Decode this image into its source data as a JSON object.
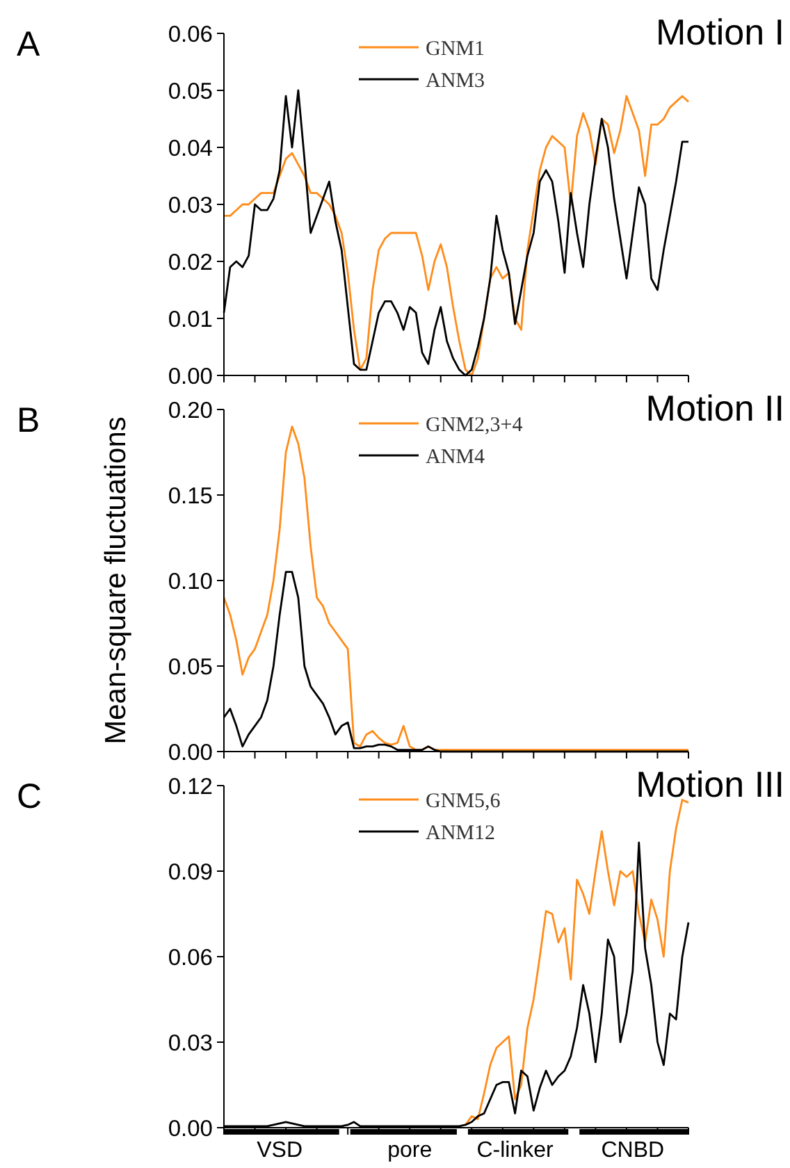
{
  "chart_data": [
    {
      "type": "line",
      "title": "Motion I",
      "annotations": [
        "A"
      ],
      "categories": [
        null,
        null,
        null,
        null,
        null,
        null,
        null,
        null,
        null,
        null,
        null,
        null,
        null,
        null,
        null,
        null,
        null,
        null,
        null,
        null,
        null,
        null,
        null,
        null,
        null,
        null,
        null,
        null,
        null,
        null,
        null,
        null,
        null,
        null,
        null,
        null,
        null,
        null,
        null,
        null,
        null,
        null,
        null,
        null,
        null,
        null,
        null,
        null,
        null,
        null,
        null,
        null,
        null,
        null,
        null,
        null,
        null,
        null,
        null,
        null,
        null,
        null,
        null,
        null,
        null,
        null,
        null,
        null,
        null,
        null,
        null,
        null,
        null,
        null,
        null,
        null
      ],
      "series": [
        {
          "name": "GNM1",
          "color": "#ff8c1a",
          "values": [
            0.028,
            0.028,
            0.029,
            0.03,
            0.03,
            0.031,
            0.032,
            0.032,
            0.032,
            0.035,
            0.038,
            0.039,
            0.037,
            0.035,
            0.032,
            0.032,
            0.031,
            0.03,
            0.028,
            0.025,
            0.018,
            0.008,
            0.001,
            0.003,
            0.015,
            0.022,
            0.024,
            0.025,
            0.025,
            0.025,
            0.025,
            0.025,
            0.021,
            0.015,
            0.02,
            0.023,
            0.019,
            0.012,
            0.006,
            0.001,
            0.0,
            0.003,
            0.01,
            0.017,
            0.019,
            0.017,
            0.018,
            0.01,
            0.008,
            0.022,
            0.029,
            0.036,
            0.04,
            0.042,
            0.041,
            0.04,
            0.03,
            0.042,
            0.046,
            0.043,
            0.037,
            0.045,
            0.044,
            0.039,
            0.043,
            0.049,
            0.046,
            0.043,
            0.035,
            0.044,
            0.044,
            0.045,
            0.047,
            0.048,
            0.049,
            0.048
          ]
        },
        {
          "name": "ANM3",
          "color": "#000000",
          "values": [
            0.011,
            0.019,
            0.02,
            0.019,
            0.021,
            0.03,
            0.029,
            0.029,
            0.031,
            0.036,
            0.049,
            0.04,
            0.05,
            0.038,
            0.025,
            0.028,
            0.031,
            0.034,
            0.027,
            0.022,
            0.012,
            0.002,
            0.001,
            0.001,
            0.006,
            0.011,
            0.013,
            0.013,
            0.011,
            0.008,
            0.012,
            0.011,
            0.004,
            0.002,
            0.008,
            0.012,
            0.006,
            0.003,
            0.001,
            0.0,
            0.001,
            0.005,
            0.01,
            0.017,
            0.028,
            0.022,
            0.018,
            0.009,
            0.015,
            0.021,
            0.025,
            0.034,
            0.036,
            0.034,
            0.027,
            0.018,
            0.032,
            0.025,
            0.019,
            0.03,
            0.038,
            0.045,
            0.04,
            0.031,
            0.024,
            0.017,
            0.025,
            0.033,
            0.03,
            0.017,
            0.015,
            0.022,
            0.028,
            0.034,
            0.041,
            0.041
          ]
        }
      ],
      "ylim": [
        0,
        0.06
      ],
      "yticks": [
        {
          "value": 0,
          "label": "0.00"
        },
        {
          "value": 0.01,
          "label": "0.01"
        },
        {
          "value": 0.02,
          "label": "0.02"
        },
        {
          "value": 0.03,
          "label": "0.03"
        },
        {
          "value": 0.04,
          "label": "0.04"
        },
        {
          "value": 0.05,
          "label": "0.05"
        },
        {
          "value": 0.06,
          "label": "0.06"
        }
      ],
      "legend": "top",
      "tick_labels": "y"
    },
    {
      "type": "line",
      "title": "Motion II",
      "annotations": [
        "B"
      ],
      "ylabel": "Mean-square fluctuations",
      "categories": [
        null,
        null,
        null,
        null,
        null,
        null,
        null,
        null,
        null,
        null,
        null,
        null,
        null,
        null,
        null,
        null,
        null,
        null,
        null,
        null,
        null,
        null,
        null,
        null,
        null,
        null,
        null,
        null,
        null,
        null,
        null,
        null,
        null,
        null,
        null,
        null,
        null,
        null,
        null,
        null,
        null,
        null,
        null,
        null,
        null,
        null,
        null,
        null,
        null,
        null,
        null,
        null,
        null,
        null,
        null,
        null,
        null,
        null,
        null,
        null,
        null,
        null,
        null,
        null,
        null,
        null,
        null,
        null,
        null,
        null,
        null,
        null,
        null,
        null,
        null,
        null
      ],
      "series": [
        {
          "name": "GNM2,3+4",
          "color": "#ff8c1a",
          "values": [
            0.09,
            0.08,
            0.065,
            0.045,
            0.055,
            0.06,
            0.07,
            0.08,
            0.1,
            0.13,
            0.175,
            0.19,
            0.18,
            0.16,
            0.12,
            0.09,
            0.085,
            0.075,
            0.07,
            0.065,
            0.06,
            0.005,
            0.003,
            0.01,
            0.012,
            0.008,
            0.005,
            0.004,
            0.005,
            0.015,
            0.003,
            0.001,
            0.001,
            0.003,
            0.001,
            0.001,
            0.001,
            0.001,
            0.001,
            0.001,
            0.001,
            0.001,
            0.001,
            0.001,
            0.001,
            0.001,
            0.001,
            0.001,
            0.001,
            0.001,
            0.001,
            0.001,
            0.001,
            0.001,
            0.001,
            0.001,
            0.001,
            0.001,
            0.001,
            0.001,
            0.001,
            0.001,
            0.001,
            0.001,
            0.001,
            0.001,
            0.001,
            0.001,
            0.001,
            0.001,
            0.001,
            0.001,
            0.001,
            0.001,
            0.001,
            0.001
          ]
        },
        {
          "name": "ANM4",
          "color": "#000000",
          "values": [
            0.02,
            0.025,
            0.015,
            0.003,
            0.01,
            0.015,
            0.02,
            0.03,
            0.05,
            0.08,
            0.105,
            0.105,
            0.09,
            0.05,
            0.038,
            0.033,
            0.028,
            0.02,
            0.01,
            0.015,
            0.017,
            0.002,
            0.002,
            0.003,
            0.003,
            0.004,
            0.004,
            0.003,
            0.001,
            0.001,
            0.001,
            0.001,
            0.001,
            0.003,
            0.001,
            0.0,
            0.0,
            0.0,
            0.0,
            0.0,
            0.0,
            0.0,
            0.0,
            0.0,
            0.0,
            0.0,
            0.0,
            0.0,
            0.0,
            0.0,
            0.0,
            0.0,
            0.0,
            0.0,
            0.0,
            0.0,
            0.0,
            0.0,
            0.0,
            0.0,
            0.0,
            0.0,
            0.0,
            0.0,
            0.0,
            0.0,
            0.0,
            0.0,
            0.0,
            0.0,
            0.0,
            0.0,
            0.0,
            0.0,
            0.0,
            0.0
          ]
        }
      ],
      "ylim": [
        0,
        0.2
      ],
      "yticks": [
        {
          "value": 0,
          "label": "0.00"
        },
        {
          "value": 0.05,
          "label": "0.05"
        },
        {
          "value": 0.1,
          "label": "0.10"
        },
        {
          "value": 0.15,
          "label": "0.15"
        },
        {
          "value": 0.2,
          "label": "0.20"
        }
      ],
      "legend": "top",
      "tick_labels": "y"
    },
    {
      "type": "line",
      "title": "Motion III",
      "annotations": [
        "C"
      ],
      "categories": [
        null,
        null,
        null,
        null,
        null,
        null,
        null,
        null,
        null,
        "VSD",
        null,
        null,
        null,
        null,
        null,
        null,
        null,
        null,
        null,
        null,
        null,
        null,
        null,
        null,
        null,
        null,
        null,
        null,
        null,
        null,
        "pore",
        null,
        null,
        null,
        null,
        null,
        null,
        null,
        null,
        null,
        null,
        null,
        null,
        null,
        null,
        null,
        null,
        "C-linker",
        null,
        null,
        null,
        null,
        null,
        null,
        null,
        null,
        null,
        null,
        null,
        null,
        null,
        null,
        null,
        null,
        null,
        null,
        "CNBD",
        null,
        null,
        null,
        null,
        null,
        null,
        null,
        null,
        null
      ],
      "series": [
        {
          "name": "GNM5,6",
          "color": "#ff8c1a",
          "values": [
            null,
            null,
            null,
            null,
            null,
            null,
            null,
            null,
            null,
            null,
            null,
            null,
            null,
            null,
            null,
            null,
            null,
            null,
            null,
            null,
            null,
            null,
            null,
            null,
            null,
            null,
            null,
            null,
            null,
            null,
            null,
            null,
            null,
            null,
            null,
            null,
            null,
            null,
            null,
            0.001,
            0.004,
            0.003,
            0.012,
            0.022,
            0.028,
            0.03,
            0.032,
            0.01,
            0.015,
            0.035,
            0.045,
            0.06,
            0.076,
            0.075,
            0.065,
            0.07,
            0.052,
            0.087,
            0.082,
            0.075,
            0.09,
            0.104,
            0.09,
            0.078,
            0.09,
            0.088,
            0.09,
            0.075,
            0.065,
            0.08,
            0.073,
            0.06,
            0.09,
            0.105,
            0.115,
            0.114
          ]
        },
        {
          "name": "ANM12",
          "color": "#000000",
          "values": [
            0.0005,
            0.0005,
            0.0005,
            0.0005,
            0.0005,
            0.0005,
            0.0005,
            0.0005,
            0.001,
            0.0015,
            0.002,
            0.0015,
            0.001,
            0.0005,
            0.0005,
            0.0005,
            0.0005,
            0.0005,
            0.0005,
            0.0005,
            0.001,
            0.002,
            0.0005,
            0.0005,
            0.0005,
            0.0005,
            0.0005,
            0.0005,
            0.0005,
            0.0005,
            0.0005,
            0.0005,
            0.0005,
            0.0005,
            0.0005,
            0.0005,
            0.0005,
            0.0005,
            0.0005,
            0.001,
            0.002,
            0.004,
            0.005,
            0.01,
            0.015,
            0.016,
            0.016,
            0.005,
            0.02,
            0.018,
            0.006,
            0.014,
            0.02,
            0.015,
            0.018,
            0.02,
            0.025,
            0.035,
            0.05,
            0.04,
            0.023,
            0.04,
            0.066,
            0.06,
            0.03,
            0.04,
            0.055,
            0.1,
            0.063,
            0.05,
            0.03,
            0.022,
            0.04,
            0.038,
            0.06,
            0.072
          ]
        }
      ],
      "ylim": [
        0,
        0.12
      ],
      "yticks": [
        {
          "value": 0,
          "label": "0.00"
        },
        {
          "value": 0.03,
          "label": "0.03"
        },
        {
          "value": 0.06,
          "label": "0.06"
        },
        {
          "value": 0.09,
          "label": "0.09"
        },
        {
          "value": 0.12,
          "label": "0.12"
        }
      ],
      "legend": "top"
    }
  ]
}
